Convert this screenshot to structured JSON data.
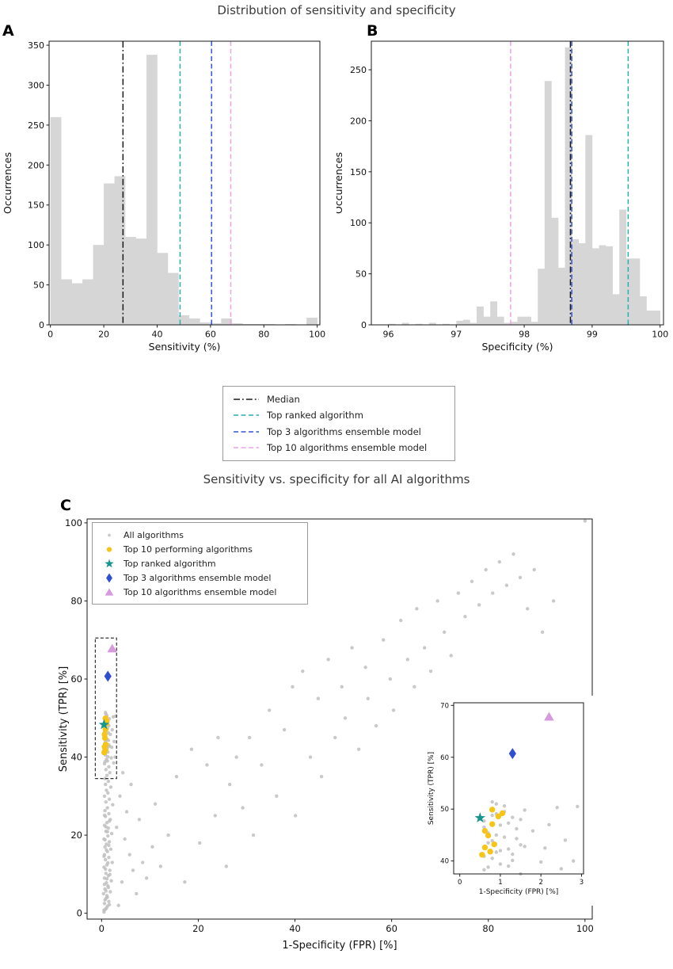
{
  "figure": {
    "title_top": "Distribution of sensitivity and specificity",
    "title_bottom": "Sensitivity vs. specificity for all AI algorithms",
    "panel_labels": {
      "a": "A",
      "b": "B",
      "c": "C"
    }
  },
  "colors": {
    "bar_fill": "#d6d6d6",
    "median_black": "#1a1a1a",
    "top_ranked_teal": "#2aaeae",
    "top3_blue": "#3353d8",
    "top10_violet": "#eda3e4",
    "scatter_gray": "#bfbfbf",
    "top10_gold": "#f6c517",
    "star_teal": "#17968e",
    "diamond_blue": "#2f4fd0",
    "triangle_violet": "#d79add"
  },
  "hist_legend": {
    "items": [
      {
        "label": "Median",
        "color": "#1a1a1a",
        "style": "dashdot"
      },
      {
        "label": "Top ranked algorithm",
        "color": "#2aaeae",
        "style": "dashed"
      },
      {
        "label": "Top 3 algorithms ensemble model",
        "color": "#3353d8",
        "style": "dashed"
      },
      {
        "label": "Top 10 algorithms ensemble model",
        "color": "#eda3e4",
        "style": "dashed"
      }
    ]
  },
  "chart_data": [
    {
      "id": "A",
      "type": "bar",
      "panel": "A",
      "xlabel": "Sensitivity (%)",
      "ylabel": "Occurrences",
      "xlim": [
        -0.5,
        101
      ],
      "ylim": [
        0,
        355
      ],
      "xticks": [
        0,
        20,
        40,
        60,
        80,
        100
      ],
      "yticks": [
        0,
        50,
        100,
        150,
        200,
        250,
        300,
        350
      ],
      "bin_start": 0,
      "bin_width": 4,
      "bar_color": "#d6d6d6",
      "values": [
        260,
        57,
        52,
        57,
        100,
        177,
        186,
        110,
        108,
        338,
        90,
        65,
        12,
        8,
        3,
        2,
        8,
        2,
        1,
        1,
        1,
        0,
        1,
        0,
        9
      ],
      "vlines": [
        {
          "x": 27.2,
          "color": "#1a1a1a",
          "style": "dashdot",
          "label": "Median"
        },
        {
          "x": 48.6,
          "color": "#2aaeae",
          "style": "dashed",
          "label": "Top ranked algorithm"
        },
        {
          "x": 60.4,
          "color": "#3353d8",
          "style": "dashed",
          "label": "Top 3 algorithms ensemble model"
        },
        {
          "x": 67.6,
          "color": "#eda3e4",
          "style": "dashed",
          "label": "Top 10 algorithms ensemble model"
        }
      ]
    },
    {
      "id": "B",
      "type": "bar",
      "panel": "B",
      "xlabel": "Specificity (%)",
      "ylabel": "Occurrences",
      "xlim": [
        95.75,
        100.05
      ],
      "ylim": [
        0,
        278
      ],
      "xticks": [
        96,
        97,
        98,
        99,
        100
      ],
      "yticks": [
        0,
        50,
        100,
        150,
        200,
        250
      ],
      "bin_start": 96.0,
      "bin_width": 0.1,
      "bar_color": "#d6d6d6",
      "values": [
        1,
        0,
        2,
        0,
        1,
        0,
        2,
        0,
        1,
        0,
        4,
        5,
        2,
        18,
        8,
        23,
        8,
        2,
        3,
        8,
        8,
        3,
        55,
        239,
        105,
        56,
        272,
        84,
        80,
        186,
        75,
        78,
        77,
        30,
        113,
        65,
        65,
        28,
        14,
        14
      ],
      "vlines": [
        {
          "x": 97.8,
          "color": "#eda3e4",
          "style": "dashed",
          "label": "Top 10 algorithms ensemble model"
        },
        {
          "x": 98.68,
          "color": "#1a1a1a",
          "style": "dashdot",
          "label": "Median"
        },
        {
          "x": 98.7,
          "color": "#3353d8",
          "style": "dashed",
          "label": "Top 3 algorithms ensemble model"
        },
        {
          "x": 99.53,
          "color": "#2aaeae",
          "style": "dashed",
          "label": "Top ranked algorithm"
        }
      ]
    },
    {
      "id": "C",
      "type": "scatter",
      "panel": "C",
      "xlabel": "1-Specificity (FPR) [%]",
      "ylabel": "Sensitivity (TPR)  [%]",
      "xlim": [
        -3,
        101.5
      ],
      "ylim": [
        -1.5,
        101
      ],
      "xticks": [
        0,
        20,
        40,
        60,
        80,
        100
      ],
      "yticks": [
        0,
        20,
        40,
        60,
        80,
        100
      ],
      "zoom_rect": {
        "x0": -1.3,
        "x1": 3.1,
        "y0": 34.5,
        "y1": 70.5
      },
      "series": [
        {
          "name": "All algorithms",
          "marker": "dot",
          "color": "#bfbfbf",
          "points": [
            [
              0.5,
              0.3
            ],
            [
              0.8,
              1
            ],
            [
              1.2,
              1.8
            ],
            [
              0.6,
              2.5
            ],
            [
              1.5,
              3
            ],
            [
              0.9,
              3.8
            ],
            [
              1.1,
              4.5
            ],
            [
              0.4,
              5
            ],
            [
              1.8,
              5.5
            ],
            [
              0.7,
              6.2
            ],
            [
              1.3,
              7
            ],
            [
              1,
              7.8
            ],
            [
              2,
              8.3
            ],
            [
              0.6,
              9
            ],
            [
              1.4,
              9.6
            ],
            [
              0.9,
              10.2
            ],
            [
              1.7,
              11
            ],
            [
              0.5,
              11.8
            ],
            [
              1.1,
              12.4
            ],
            [
              2.2,
              13
            ],
            [
              0.8,
              13.7
            ],
            [
              1.5,
              14.3
            ],
            [
              0.6,
              15
            ],
            [
              1.2,
              15.8
            ],
            [
              1.9,
              16.4
            ],
            [
              0.7,
              17
            ],
            [
              1,
              17.7
            ],
            [
              1.6,
              18.3
            ],
            [
              0.5,
              19
            ],
            [
              1.3,
              19.8
            ],
            [
              2.1,
              20.4
            ],
            [
              0.9,
              21
            ],
            [
              1.4,
              21.8
            ],
            [
              0.6,
              22.5
            ],
            [
              1.1,
              23.2
            ],
            [
              1.8,
              24
            ],
            [
              0.8,
              24.8
            ],
            [
              1.5,
              25.5
            ],
            [
              0.7,
              26.3
            ],
            [
              1.2,
              27
            ],
            [
              2.3,
              27.8
            ],
            [
              0.9,
              28.5
            ],
            [
              1.6,
              29.2
            ],
            [
              0.6,
              30
            ],
            [
              1.3,
              30.8
            ],
            [
              1,
              31.5
            ],
            [
              1.9,
              32.3
            ],
            [
              0.8,
              33
            ],
            [
              1.4,
              33.8
            ],
            [
              0.7,
              34.5
            ],
            [
              1.1,
              35.3
            ],
            [
              1.7,
              36
            ],
            [
              0.9,
              36.8
            ],
            [
              1.5,
              37.5
            ],
            [
              0.6,
              38.3
            ],
            [
              1.2,
              39
            ],
            [
              2,
              39.8
            ],
            [
              0.8,
              40.5
            ],
            [
              1.3,
              41.3
            ],
            [
              1,
              42
            ],
            [
              1.6,
              42.8
            ],
            [
              0.7,
              43.5
            ],
            [
              1.4,
              44.3
            ],
            [
              0.9,
              45
            ],
            [
              1.8,
              45.8
            ],
            [
              0.6,
              46.5
            ],
            [
              1.2,
              47.3
            ],
            [
              1.5,
              48
            ],
            [
              0.8,
              48.8
            ],
            [
              1.1,
              49.5
            ],
            [
              2.4,
              50.3
            ],
            [
              0.9,
              51
            ],
            [
              0.5,
              0.8
            ],
            [
              1,
              1.3
            ],
            [
              1.6,
              2.2
            ],
            [
              0.7,
              3.4
            ],
            [
              1.2,
              4.1
            ],
            [
              0.9,
              5.7
            ],
            [
              1.4,
              6.6
            ],
            [
              0.6,
              7.4
            ],
            [
              1.1,
              8.8
            ],
            [
              1.7,
              9.9
            ],
            [
              0.8,
              11.3
            ],
            [
              1.3,
              12.9
            ],
            [
              0.5,
              14.6
            ],
            [
              1,
              16.2
            ],
            [
              1.5,
              17.4
            ],
            [
              0.7,
              18.8
            ],
            [
              1.2,
              20.9
            ],
            [
              0.9,
              22.1
            ],
            [
              1.6,
              23.6
            ],
            [
              0.6,
              25.1
            ],
            [
              0.7,
              38.8
            ],
            [
              1,
              39.4
            ],
            [
              1.3,
              40.1
            ],
            [
              0.6,
              40.9
            ],
            [
              0.9,
              41.7
            ],
            [
              1.2,
              42.3
            ],
            [
              1.5,
              43.1
            ],
            [
              0.8,
              43.9
            ],
            [
              1.1,
              44.6
            ],
            [
              0.7,
              45.4
            ],
            [
              1.4,
              46.2
            ],
            [
              1,
              46.9
            ],
            [
              0.6,
              47.7
            ],
            [
              1.3,
              48.4
            ],
            [
              0.9,
              49.1
            ],
            [
              1.6,
              49.8
            ],
            [
              1.1,
              50.6
            ],
            [
              0.8,
              51.4
            ],
            [
              2.6,
              44
            ],
            [
              2.8,
              40
            ],
            [
              2.2,
              47
            ],
            [
              2.9,
              50.5
            ],
            [
              2.5,
              38.5
            ],
            [
              2.1,
              42.5
            ],
            [
              3.5,
              2
            ],
            [
              4.2,
              8
            ],
            [
              5.8,
              15
            ],
            [
              3.1,
              22
            ],
            [
              6.5,
              11
            ],
            [
              4.8,
              19
            ],
            [
              7.2,
              5
            ],
            [
              3.8,
              30
            ],
            [
              5.2,
              26
            ],
            [
              8.5,
              13
            ],
            [
              6.1,
              33
            ],
            [
              9.3,
              9
            ],
            [
              4.4,
              36
            ],
            [
              7.8,
              24
            ],
            [
              10.5,
              17
            ],
            [
              12.2,
              12
            ],
            [
              11.1,
              28
            ],
            [
              13.8,
              20
            ],
            [
              15.5,
              35
            ],
            [
              17.2,
              8
            ],
            [
              18.6,
              42
            ],
            [
              20.3,
              18
            ],
            [
              21.8,
              38
            ],
            [
              23.5,
              25
            ],
            [
              24.1,
              45
            ],
            [
              25.8,
              12
            ],
            [
              26.5,
              33
            ],
            [
              27.9,
              40
            ],
            [
              29.2,
              27
            ],
            [
              30.6,
              45
            ],
            [
              31.4,
              20
            ],
            [
              33.1,
              38
            ],
            [
              34.7,
              52
            ],
            [
              36.2,
              30
            ],
            [
              37.8,
              47
            ],
            [
              39.5,
              58
            ],
            [
              40.1,
              25
            ],
            [
              41.6,
              62
            ],
            [
              43.2,
              40
            ],
            [
              44.8,
              55
            ],
            [
              45.5,
              35
            ],
            [
              46.9,
              65
            ],
            [
              48.3,
              45
            ],
            [
              49.7,
              58
            ],
            [
              50.4,
              50
            ],
            [
              51.8,
              68
            ],
            [
              53.2,
              42
            ],
            [
              54.6,
              63
            ],
            [
              55.1,
              55
            ],
            [
              56.8,
              48
            ],
            [
              58.3,
              70
            ],
            [
              59.7,
              60
            ],
            [
              60.4,
              52
            ],
            [
              61.9,
              75
            ],
            [
              63.3,
              65
            ],
            [
              64.7,
              58
            ],
            [
              65.2,
              78
            ],
            [
              66.8,
              68
            ],
            [
              68.1,
              62
            ],
            [
              69.5,
              80
            ],
            [
              70.9,
              72
            ],
            [
              72.3,
              66
            ],
            [
              73.8,
              82
            ],
            [
              75.2,
              76
            ],
            [
              76.6,
              85
            ],
            [
              78.1,
              79
            ],
            [
              79.5,
              88
            ],
            [
              80.9,
              82
            ],
            [
              82.3,
              90
            ],
            [
              83.8,
              84
            ],
            [
              85.2,
              92
            ],
            [
              86.6,
              86
            ],
            [
              88.1,
              78
            ],
            [
              89.5,
              88
            ],
            [
              91.2,
              72
            ],
            [
              93.5,
              80
            ],
            [
              100,
              100.5
            ]
          ]
        },
        {
          "name": "Top 10 performing algorithms",
          "marker": "bigdot",
          "color": "#f6c517",
          "points": [
            [
              0.55,
              41.2
            ],
            [
              0.75,
              41.8
            ],
            [
              0.62,
              42.6
            ],
            [
              0.85,
              43.2
            ],
            [
              0.7,
              44.9
            ],
            [
              0.62,
              45.8
            ],
            [
              0.8,
              47.1
            ],
            [
              0.95,
              48.6
            ],
            [
              1.05,
              49.2
            ],
            [
              0.8,
              49.9
            ]
          ]
        },
        {
          "name": "Top ranked algorithm",
          "marker": "star",
          "color": "#17968e",
          "points": [
            [
              0.5,
              48.3
            ]
          ]
        },
        {
          "name": "Top 3 algorithms ensemble model",
          "marker": "diamond",
          "color": "#2f4fd0",
          "points": [
            [
              1.3,
              60.7
            ]
          ]
        },
        {
          "name": "Top 10 algorithms ensemble model",
          "marker": "triangle",
          "color": "#d79add",
          "points": [
            [
              2.2,
              67.8
            ]
          ]
        }
      ]
    },
    {
      "id": "C-inset",
      "type": "scatter",
      "panel": "C (inset)",
      "xlabel": "1-Specificity (FPR) [%]",
      "ylabel": "Sensitivity (TPR) [%]",
      "xlim": [
        -0.15,
        3.05
      ],
      "ylim": [
        37.5,
        70.5
      ],
      "xticks": [
        0,
        1,
        2,
        3
      ],
      "yticks": [
        40,
        50,
        60,
        70
      ],
      "uses_series_from": "C"
    }
  ]
}
